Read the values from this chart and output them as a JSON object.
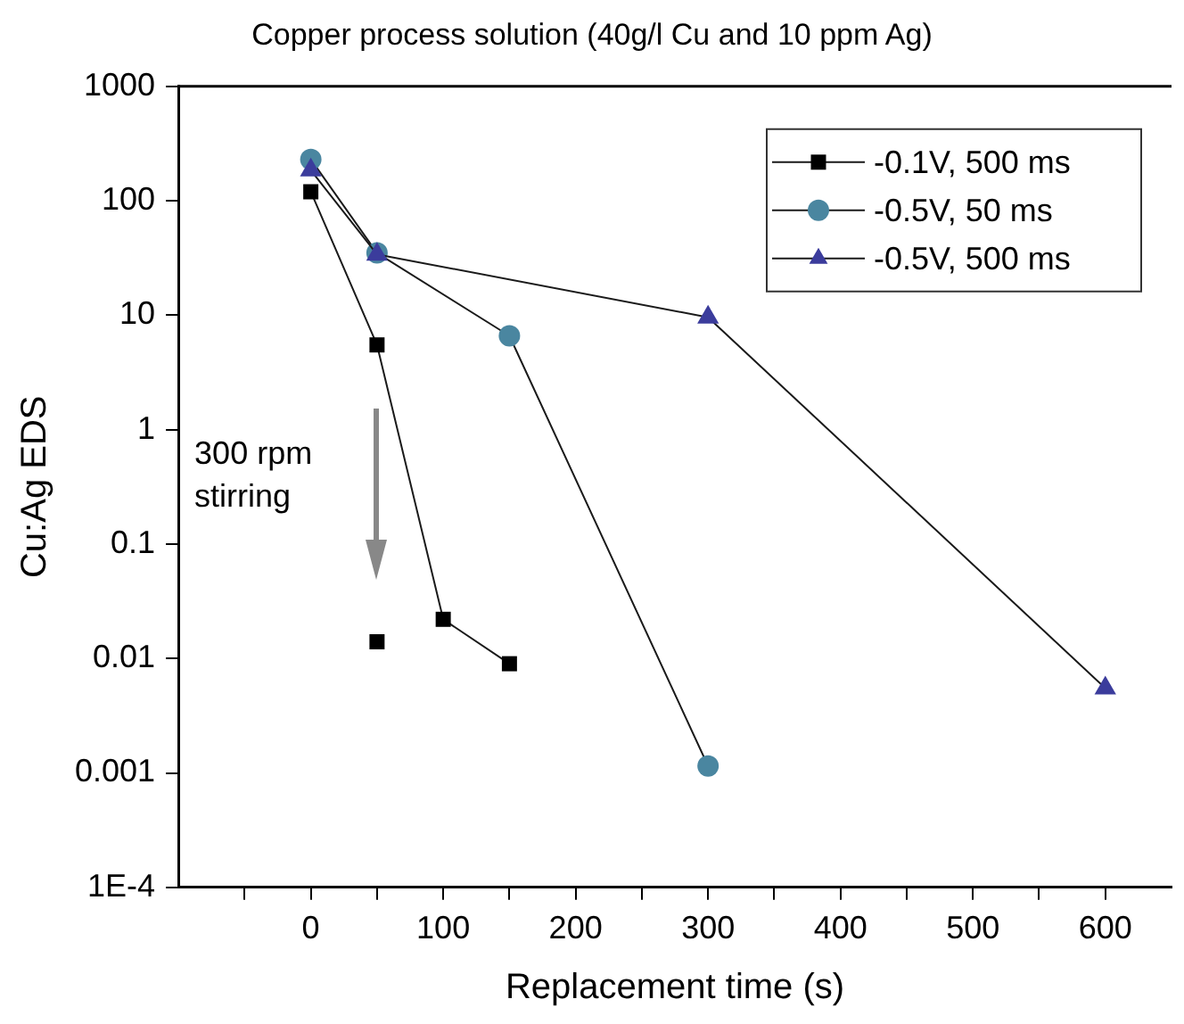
{
  "chart_data": {
    "type": "line",
    "title": "Copper process solution (40g/l Cu and 10 ppm Ag)",
    "xlabel": "Replacement time (s)",
    "ylabel": "Cu:Ag EDS",
    "xlim": [
      -100,
      650
    ],
    "xticks": [
      {
        "value": -50,
        "label": null
      },
      0,
      {
        "value": 50,
        "label": null
      },
      100,
      {
        "value": 150,
        "label": null
      },
      200,
      {
        "value": 250,
        "label": null
      },
      300,
      {
        "value": 350,
        "label": null
      },
      400,
      {
        "value": 450,
        "label": null
      },
      500,
      {
        "value": 550,
        "label": null
      },
      600
    ],
    "ylim": [
      0.0001,
      1000
    ],
    "yticks": [
      {
        "value": 0.0001,
        "label": "1E-4"
      },
      0.001,
      0.01,
      0.1,
      1,
      10,
      100,
      1000
    ],
    "log": true,
    "grid": false,
    "legend": "top right",
    "line_style": "solid",
    "series": [
      {
        "name": "-0.1V, 500 ms",
        "color": "#000000",
        "marker": "square",
        "x": [
          0,
          50,
          100,
          150
        ],
        "values": [
          120,
          5.5,
          0.022,
          0.009
        ]
      },
      {
        "type": "scatter",
        "color": "#000000",
        "marker": "square",
        "x": [
          50
        ],
        "values": [
          0.014
        ]
      },
      {
        "name": "-0.5V, 50 ms",
        "color": "#4a86a0",
        "marker": "circle",
        "x": [
          0,
          50,
          150,
          300
        ],
        "values": [
          230,
          35,
          6.6,
          0.00115
        ]
      },
      {
        "name": "-0.5V, 500 ms",
        "color": "#3b3c9c",
        "marker": "triangle",
        "x": [
          0,
          50,
          300,
          600
        ],
        "values": [
          185,
          34,
          9.6,
          0.0055
        ]
      }
    ],
    "annotations": [
      "300 rpm stirring"
    ]
  }
}
